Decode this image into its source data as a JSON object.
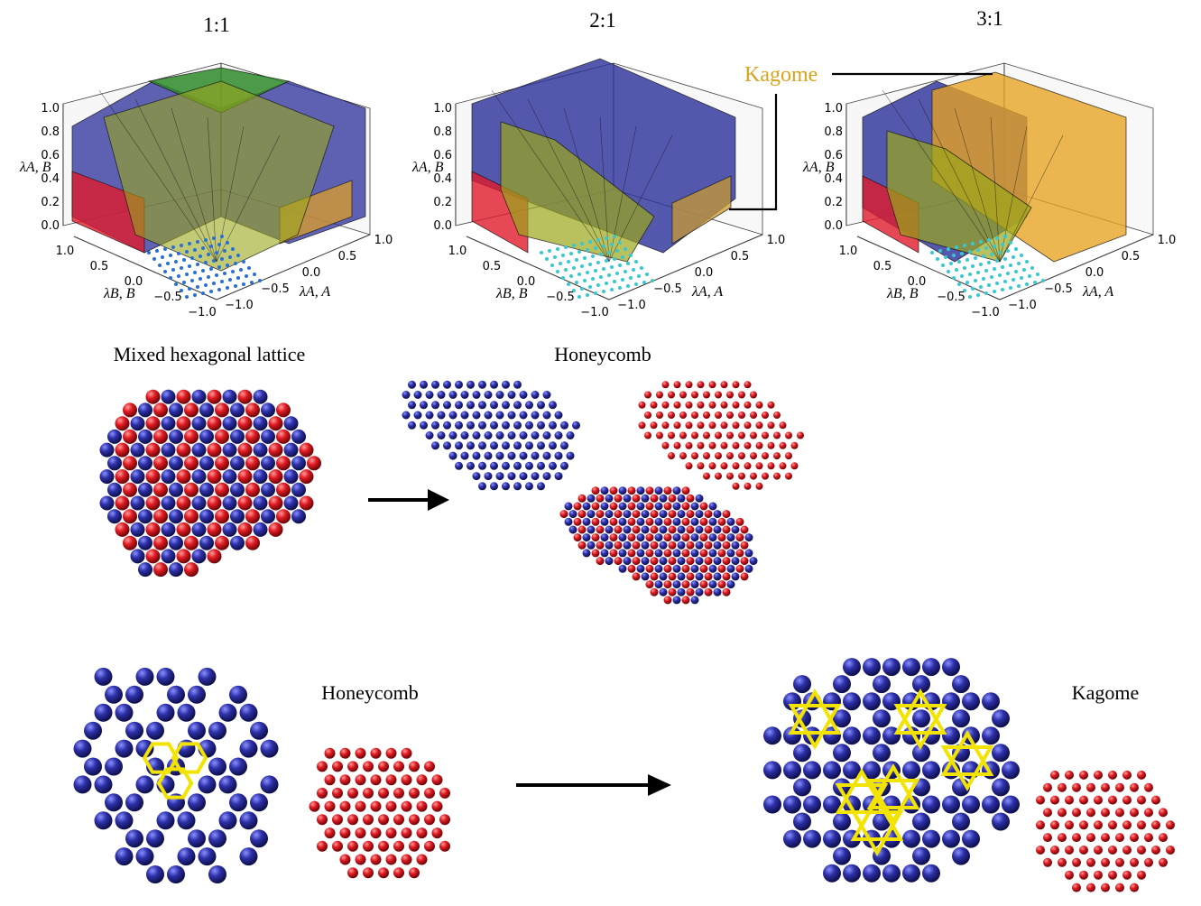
{
  "panels": [
    {
      "title": "1:1",
      "z_ticks": [
        "0.0",
        "0.2",
        "0.4",
        "0.6",
        "0.8",
        "1.0"
      ],
      "b_ticks": [
        "1.0",
        "0.5",
        "0.0",
        "−0.5",
        "−1.0"
      ],
      "a_ticks": [
        "−1.0",
        "−0.5",
        "0.0",
        "0.5",
        "1.0"
      ],
      "z_label": "λA, B",
      "b_label": "λB, B",
      "a_label": "λA, A"
    },
    {
      "title": "2:1",
      "z_ticks": [
        "0.0",
        "0.2",
        "0.4",
        "0.6",
        "0.8",
        "1.0"
      ],
      "b_ticks": [
        "1.0",
        "0.5",
        "0.0",
        "−0.5",
        "−1.0"
      ],
      "a_ticks": [
        "−1.0",
        "−0.5",
        "0.0",
        "0.5",
        "1.0"
      ],
      "z_label": "λA, B",
      "b_label": "λB, B",
      "a_label": "λA, A"
    },
    {
      "title": "3:1",
      "z_ticks": [
        "0.0",
        "0.2",
        "0.4",
        "0.6",
        "0.8",
        "1.0"
      ],
      "b_ticks": [
        "1.0",
        "0.5",
        "0.0",
        "−0.5",
        "−1.0"
      ],
      "a_ticks": [
        "−1.0",
        "−0.5",
        "0.0",
        "0.5",
        "1.0"
      ],
      "z_label": "λA, B",
      "b_label": "λB, B",
      "a_label": "λA, A"
    }
  ],
  "callout_label": "Kagome",
  "middle": {
    "left_label": "Mixed hexagonal lattice",
    "right_label": "Honeycomb"
  },
  "bottom": {
    "left_label": "Honeycomb",
    "right_label": "Kagome"
  },
  "colors": {
    "blue": "#2b2f9a",
    "red": "#e01b2a",
    "green": "#3a9a2a",
    "yellow": "#a8b020",
    "orange": "#e7a320",
    "kagome_text": "#d9a41c",
    "highlight": "#f2e400",
    "cyan": "#38c8d0"
  }
}
